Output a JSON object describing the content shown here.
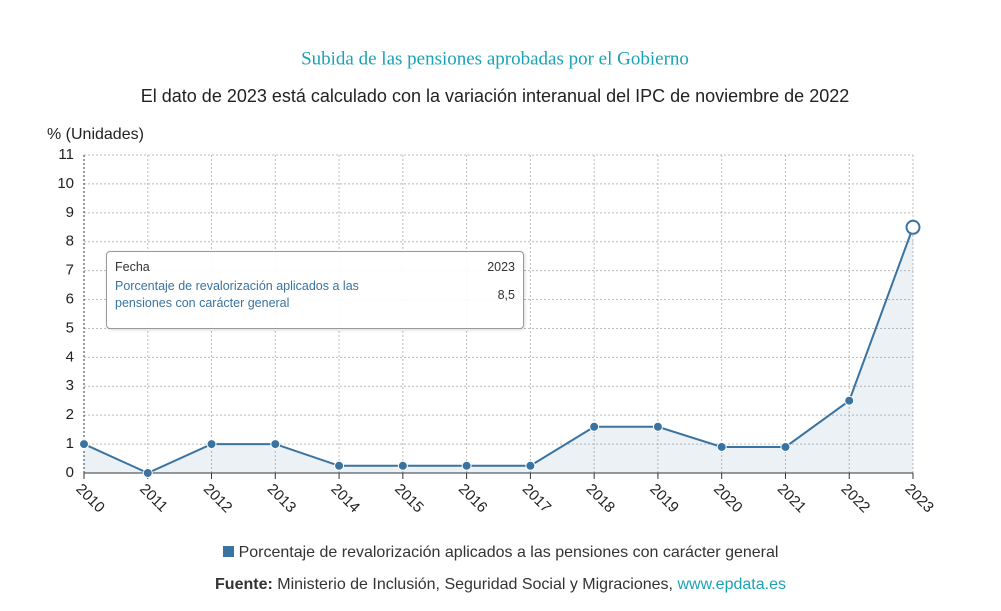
{
  "chart_data": {
    "type": "line",
    "title": "Subida de las pensiones aprobadas por el Gobierno",
    "subtitle": "El dato de 2023 está calculado con la variación interanual del IPC de noviembre de 2022",
    "y_label": "% (Unidades)",
    "categories": [
      "2010",
      "2011",
      "2012",
      "2013",
      "2014",
      "2015",
      "2016",
      "2017",
      "2018",
      "2019",
      "2020",
      "2021",
      "2022",
      "2023"
    ],
    "series": [
      {
        "name": "Porcentaje de revalorización aplicados a las pensiones con carácter general",
        "color": "#3a73a0",
        "values": [
          1,
          0,
          1,
          1,
          0.25,
          0.25,
          0.25,
          0.25,
          1.6,
          1.6,
          0.9,
          0.9,
          2.5,
          8.5
        ]
      }
    ],
    "ylim": [
      0,
      11
    ],
    "yticks": [
      0,
      1,
      2,
      3,
      4,
      5,
      6,
      7,
      8,
      9,
      10,
      11
    ],
    "grid": true,
    "area": true,
    "tooltip": {
      "title": "Fecha",
      "value_label": "8,5"
    },
    "footer": {
      "label": "Fuente:",
      "text": "Ministerio de Inclusión, Seguridad Social y Migraciones,",
      "link": "www.epdata.es"
    }
  }
}
